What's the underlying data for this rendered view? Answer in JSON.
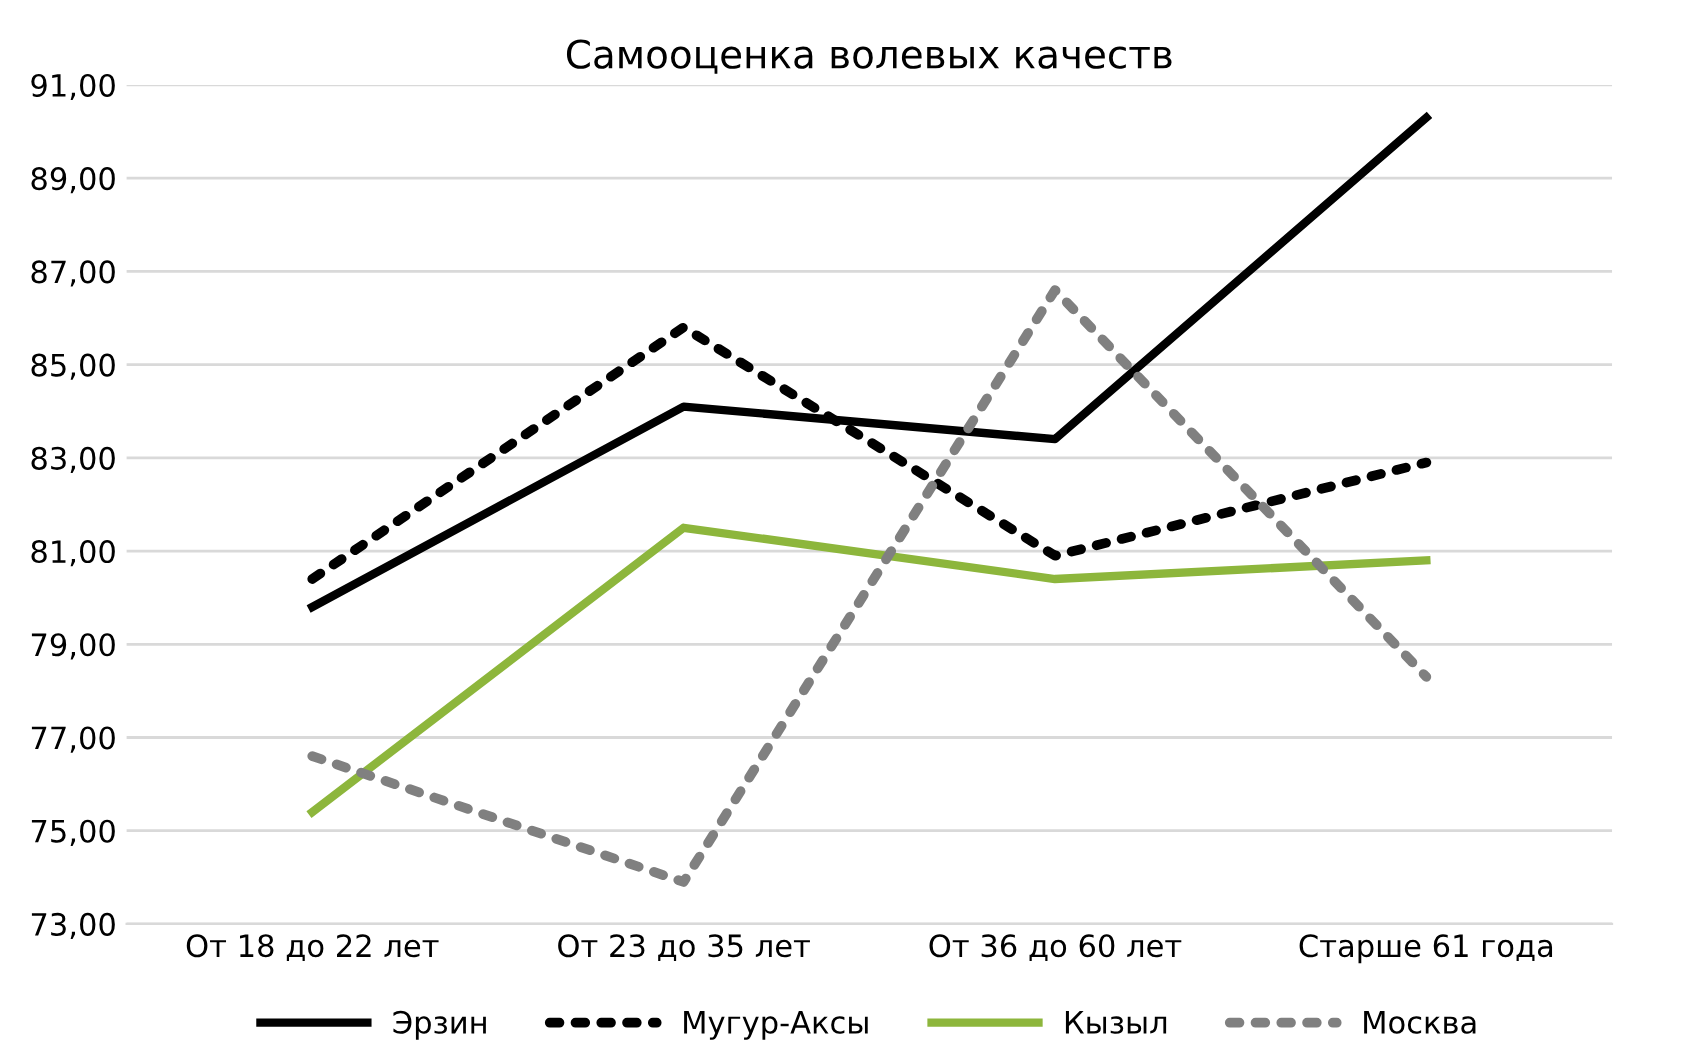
{
  "chart_data": {
    "type": "line",
    "title": "Самооценка волевых качеств",
    "categories": [
      "От 18 до 22 лет",
      "От 23 до 35 лет",
      "От 36 до 60 лет",
      "Старше 61 года"
    ],
    "series": [
      {
        "name": "Эрзин",
        "color": "#000000",
        "line_style": "solid",
        "values": [
          79.8,
          84.1,
          83.4,
          90.3
        ]
      },
      {
        "name": "Мугур-Аксы",
        "color": "#000000",
        "line_style": "dotted",
        "values": [
          80.4,
          85.8,
          80.9,
          82.9
        ]
      },
      {
        "name": "Кызыл",
        "color": "#8db63c",
        "line_style": "solid",
        "values": [
          75.4,
          81.5,
          80.4,
          80.8
        ]
      },
      {
        "name": "Москва",
        "color": "#808080",
        "line_style": "dotted",
        "values": [
          76.6,
          73.9,
          86.6,
          78.3
        ]
      }
    ],
    "ylim": [
      73,
      91
    ],
    "yticks": [
      {
        "value": 73,
        "label": "73,00"
      },
      {
        "value": 75,
        "label": "75,00"
      },
      {
        "value": 77,
        "label": "77,00"
      },
      {
        "value": 79,
        "label": "79,00"
      },
      {
        "value": 81,
        "label": "81,00"
      },
      {
        "value": 83,
        "label": "83,00"
      },
      {
        "value": 85,
        "label": "85,00"
      },
      {
        "value": 87,
        "label": "87,00"
      },
      {
        "value": 89,
        "label": "89,00"
      },
      {
        "value": 91,
        "label": "91,00"
      }
    ],
    "grid": "y",
    "legend": "bottom",
    "marker": "none"
  }
}
